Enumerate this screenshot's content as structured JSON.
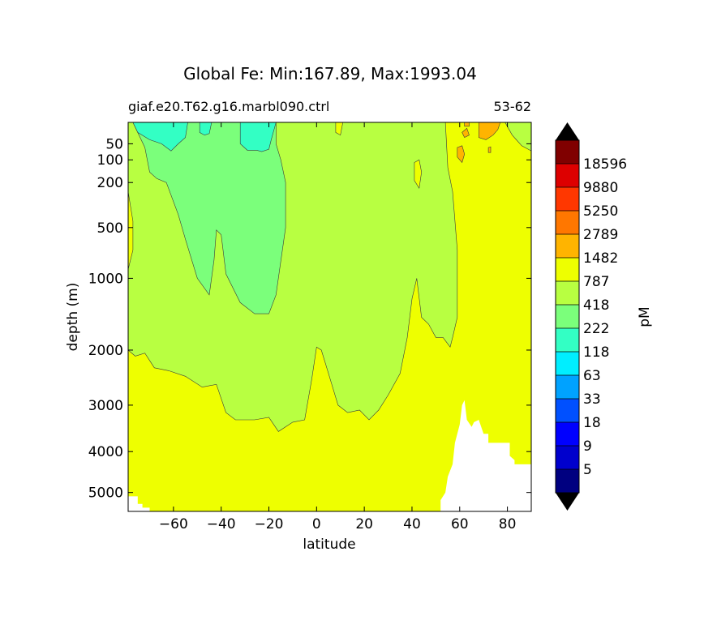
{
  "chart_data": {
    "type": "heatmap",
    "title": "Global Fe: Min:167.89, Max:1993.04",
    "subtitle_left": "giaf.e20.T62.g16.marbl090.ctrl",
    "subtitle_right": "53-62",
    "xlabel": "latitude",
    "ylabel": "depth (m)",
    "colorbar_label": "pM",
    "xlim": [
      -79,
      90
    ],
    "ylim": [
      5500,
      10
    ],
    "yscale": "sqrt-depth",
    "x_ticks": [
      -60,
      -40,
      -20,
      0,
      20,
      40,
      60,
      80
    ],
    "x_tick_labels": [
      "−60",
      "−40",
      "−20",
      "0",
      "20",
      "40",
      "60",
      "80"
    ],
    "y_ticks": [
      50,
      100,
      200,
      500,
      1000,
      2000,
      3000,
      4000,
      5000
    ],
    "y_tick_labels": [
      "50",
      "100",
      "200",
      "500",
      "1000",
      "2000",
      "3000",
      "4000",
      "5000"
    ],
    "levels": [
      5,
      9,
      18,
      33,
      63,
      118,
      222,
      418,
      787,
      1482,
      2789,
      5250,
      9880,
      18596
    ],
    "level_labels": [
      "5",
      "9",
      "18",
      "33",
      "63",
      "118",
      "222",
      "418",
      "787",
      "1482",
      "2789",
      "5250",
      "9880",
      "18596"
    ],
    "colors": [
      "#000080",
      "#0000cd",
      "#0000ff",
      "#0050ff",
      "#00a2ff",
      "#00eeff",
      "#33ffc4",
      "#7bff7b",
      "#b8ff41",
      "#eeff00",
      "#ffb400",
      "#ff7700",
      "#ff3700",
      "#dd0000",
      "#800000"
    ],
    "extend_colors": {
      "under": "#000000",
      "over": "#000000"
    },
    "regions": [
      {
        "level": "222-418",
        "color": "#7bff7b",
        "points": [
          [
            -77,
            10
          ],
          [
            -72,
            60
          ],
          [
            -70,
            150
          ],
          [
            -67,
            180
          ],
          [
            -63,
            200
          ],
          [
            -58,
            400
          ],
          [
            -55,
            600
          ],
          [
            -50,
            1000
          ],
          [
            -45,
            1200
          ],
          [
            -43,
            800
          ],
          [
            -42,
            520
          ],
          [
            -40,
            560
          ],
          [
            -38,
            950
          ],
          [
            -32,
            1300
          ],
          [
            -26,
            1450
          ],
          [
            -20,
            1450
          ],
          [
            -17,
            1200
          ],
          [
            -13,
            500
          ],
          [
            -13,
            200
          ],
          [
            -15,
            100
          ],
          [
            -17,
            50
          ],
          [
            -17,
            10
          ]
        ]
      },
      {
        "level": "118-222",
        "color": "#33ffc4",
        "points": [
          [
            -77,
            10
          ],
          [
            -75,
            25
          ],
          [
            -70,
            40
          ],
          [
            -65,
            50
          ],
          [
            -61,
            70
          ],
          [
            -58,
            50
          ],
          [
            -55,
            35
          ],
          [
            -54,
            10
          ]
        ]
      },
      {
        "level": "118-222",
        "color": "#33ffc4",
        "points": [
          [
            -49,
            10
          ],
          [
            -49,
            25
          ],
          [
            -47,
            30
          ],
          [
            -45,
            27
          ],
          [
            -44,
            10
          ]
        ]
      },
      {
        "level": "118-222",
        "color": "#33ffc4",
        "points": [
          [
            -32,
            10
          ],
          [
            -32,
            50
          ],
          [
            -29,
            68
          ],
          [
            -25,
            68
          ],
          [
            -23,
            72
          ],
          [
            -20,
            65
          ],
          [
            -19,
            40
          ],
          [
            -17,
            10
          ]
        ]
      },
      {
        "level": "1482-2789",
        "color": "#eeff00",
        "points": [
          [
            -79,
            90
          ],
          [
            -79,
            900
          ],
          [
            -77,
            700
          ],
          [
            -77,
            450
          ],
          [
            -79,
            250
          ]
        ]
      },
      {
        "level": "1482-2789",
        "color": "#eeff00",
        "points": [
          [
            -79,
            2000
          ],
          [
            -76,
            2100
          ],
          [
            -72,
            2050
          ],
          [
            -68,
            2300
          ],
          [
            -62,
            2350
          ],
          [
            -55,
            2450
          ],
          [
            -48,
            2650
          ],
          [
            -42,
            2600
          ],
          [
            -38,
            3150
          ],
          [
            -34,
            3300
          ],
          [
            -26,
            3300
          ],
          [
            -20,
            3250
          ],
          [
            -16,
            3550
          ],
          [
            -10,
            3350
          ],
          [
            -5,
            3300
          ],
          [
            -2,
            2500
          ],
          [
            0,
            1950
          ],
          [
            2,
            2000
          ],
          [
            5,
            2400
          ],
          [
            9,
            3000
          ],
          [
            13,
            3150
          ],
          [
            18,
            3100
          ],
          [
            22,
            3300
          ],
          [
            26,
            3100
          ],
          [
            30,
            2800
          ],
          [
            35,
            2400
          ],
          [
            38,
            1800
          ],
          [
            40,
            1250
          ],
          [
            42,
            1000
          ],
          [
            44,
            1500
          ],
          [
            47,
            1600
          ],
          [
            50,
            1800
          ],
          [
            53,
            1800
          ],
          [
            56,
            1950
          ],
          [
            57,
            1800
          ],
          [
            59,
            1500
          ],
          [
            59,
            700
          ],
          [
            57,
            250
          ],
          [
            55,
            130
          ],
          [
            54,
            10
          ],
          [
            90,
            10
          ],
          [
            90,
            5500
          ],
          [
            -79,
            5500
          ]
        ]
      },
      {
        "level": "787-1482",
        "color": "#b8ff41",
        "points": [
          [
            79,
            10
          ],
          [
            82,
            30
          ],
          [
            86,
            55
          ],
          [
            90,
            70
          ],
          [
            90,
            10
          ]
        ]
      },
      {
        "level": "1482-2789",
        "color": "#eeff00",
        "points": [
          [
            8,
            10
          ],
          [
            8,
            25
          ],
          [
            10,
            30
          ],
          [
            11,
            10
          ]
        ]
      },
      {
        "level": "1482-2789",
        "color": "#eeff00",
        "points": [
          [
            41,
            110
          ],
          [
            43,
            100
          ],
          [
            44,
            150
          ],
          [
            43,
            230
          ],
          [
            41,
            190
          ]
        ]
      },
      {
        "level": "2789-5250",
        "color": "#ffb400",
        "points": [
          [
            68,
            10
          ],
          [
            68,
            35
          ],
          [
            71,
            40
          ],
          [
            74,
            30
          ],
          [
            76,
            20
          ],
          [
            77,
            10
          ]
        ]
      },
      {
        "level": "2789-5250",
        "color": "#ffb400",
        "points": [
          [
            59,
            60
          ],
          [
            61,
            55
          ],
          [
            62,
            80
          ],
          [
            61,
            110
          ],
          [
            59,
            90
          ]
        ]
      },
      {
        "level": "2789-5250",
        "color": "#ffb400",
        "points": [
          [
            61,
            25
          ],
          [
            63,
            18
          ],
          [
            64,
            30
          ],
          [
            62,
            35
          ]
        ]
      },
      {
        "level": "2789-5250",
        "color": "#ffb400",
        "points": [
          [
            72,
            60
          ],
          [
            73,
            58
          ],
          [
            73,
            75
          ],
          [
            72,
            75
          ]
        ]
      },
      {
        "level": "2789-5250",
        "color": "#ffb400",
        "points": [
          [
            62,
            10
          ],
          [
            64,
            10
          ],
          [
            64,
            15
          ],
          [
            62,
            15
          ]
        ]
      }
    ],
    "land_mask": [
      {
        "points": [
          [
            -79,
            5100
          ],
          [
            -75,
            5100
          ],
          [
            -75,
            5300
          ],
          [
            -73,
            5300
          ],
          [
            -73,
            5400
          ],
          [
            -70,
            5400
          ],
          [
            -70,
            5500
          ],
          [
            -79,
            5500
          ]
        ]
      },
      {
        "points": [
          [
            52,
            5500
          ],
          [
            52,
            5200
          ],
          [
            54,
            5000
          ],
          [
            55,
            4600
          ],
          [
            57,
            4300
          ],
          [
            58,
            3800
          ],
          [
            60,
            3400
          ],
          [
            61,
            3000
          ],
          [
            62,
            2900
          ],
          [
            63,
            3300
          ],
          [
            65,
            3450
          ],
          [
            66,
            3350
          ],
          [
            68,
            3300
          ],
          [
            70,
            3600
          ],
          [
            72,
            3600
          ],
          [
            72,
            3800
          ],
          [
            81,
            3800
          ],
          [
            81,
            4100
          ],
          [
            83,
            4200
          ],
          [
            83,
            4300
          ],
          [
            90,
            4300
          ],
          [
            90,
            5500
          ]
        ]
      }
    ]
  }
}
